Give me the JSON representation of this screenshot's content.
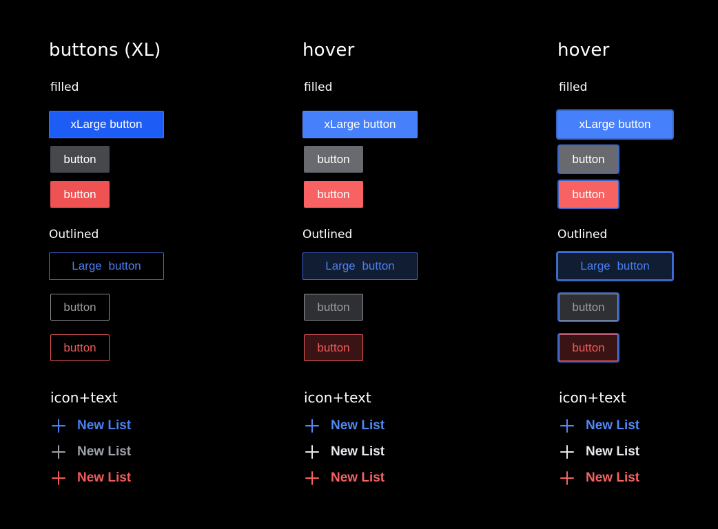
{
  "columns": [
    {
      "title": "buttons (XL)",
      "filled_label": "filled",
      "outlined_label": "Outlined",
      "icon_label": "icon+text",
      "filled_buttons": [
        "xLarge button",
        "button",
        "button"
      ],
      "outlined_buttons": [
        "Large  button",
        "button",
        "button"
      ],
      "icon_buttons": [
        "New List",
        "New List",
        "New List"
      ]
    },
    {
      "title": "hover",
      "filled_label": "filled",
      "outlined_label": "Outlined",
      "icon_label": "icon+text",
      "filled_buttons": [
        "xLarge button",
        "button",
        "button"
      ],
      "outlined_buttons": [
        "Large  button",
        "button",
        "button"
      ],
      "icon_buttons": [
        "New List",
        "New List",
        "New List"
      ]
    },
    {
      "title": "hover",
      "filled_label": "filled",
      "outlined_label": "Outlined",
      "icon_label": "icon+text",
      "filled_buttons": [
        "xLarge button",
        "button",
        "button"
      ],
      "outlined_buttons": [
        "Large  button",
        "button",
        "button"
      ],
      "icon_buttons": [
        "New List",
        "New List",
        "New List"
      ]
    }
  ],
  "icons": {
    "add": "plus-icon"
  },
  "colors": {
    "background": "#000000",
    "primary": "#1d5cf5",
    "primary_hover": "#4680fb",
    "neutral": "#46484c",
    "neutral_hover": "#686a70",
    "danger": "#ee5252",
    "danger_hover": "#f96262",
    "outline_primary": "#3f6fe6",
    "outline_neutral": "#8c8e92",
    "outline_danger": "#e55858",
    "focus_ring": "#3c66c4",
    "icon_primary": "#4a7ff0",
    "icon_neutral": "#9da1a8",
    "icon_neutral_hover": "#e6e8ec",
    "icon_danger": "#f25a5a"
  }
}
